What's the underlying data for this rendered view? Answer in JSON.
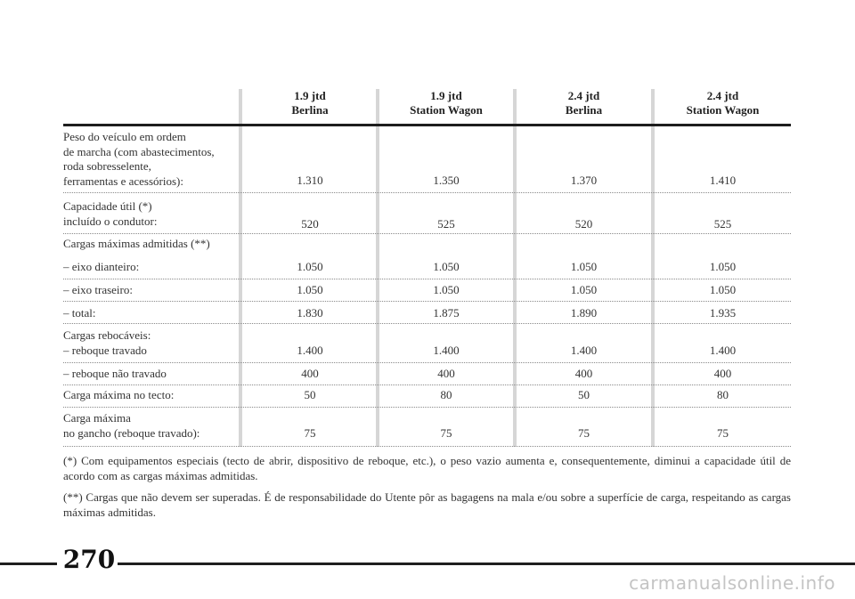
{
  "columns": [
    {
      "line1": "1.9 jtd",
      "line2": "Berlina"
    },
    {
      "line1": "1.9 jtd",
      "line2": "Station Wagon"
    },
    {
      "line1": "2.4 jtd",
      "line2": "Berlina"
    },
    {
      "line1": "2.4 jtd",
      "line2": "Station Wagon"
    }
  ],
  "rows": [
    {
      "label": "Peso do veículo em ordem\nde marcha (com abastecimentos,\nroda sobresselente,\nferramentas e acessórios):",
      "values": [
        "1.310",
        "1.350",
        "1.370",
        "1.410"
      ]
    },
    {
      "label": "Capacidade útil (*)\nincluído o condutor:",
      "values": [
        "520",
        "525",
        "520",
        "525"
      ]
    },
    {
      "label": "Cargas máximas admitidas (**)",
      "values": [
        "",
        "",
        "",
        ""
      ]
    },
    {
      "label": "– eixo dianteiro:",
      "values": [
        "1.050",
        "1.050",
        "1.050",
        "1.050"
      ]
    },
    {
      "label": "– eixo traseiro:",
      "values": [
        "1.050",
        "1.050",
        "1.050",
        "1.050"
      ]
    },
    {
      "label": "– total:",
      "values": [
        "1.830",
        "1.875",
        "1.890",
        "1.935"
      ]
    },
    {
      "label": "Cargas rebocáveis:\n– reboque travado",
      "values": [
        "1.400",
        "1.400",
        "1.400",
        "1.400"
      ]
    },
    {
      "label": "– reboque não travado",
      "values": [
        "400",
        "400",
        "400",
        "400"
      ]
    },
    {
      "label": "Carga máxima no tecto:",
      "values": [
        "50",
        "80",
        "50",
        "80"
      ]
    },
    {
      "label": "Carga máxima\nno gancho (reboque travado):",
      "values": [
        "75",
        "75",
        "75",
        "75"
      ]
    }
  ],
  "notes": [
    "(*) Com equipamentos especiais (tecto de abrir, dispositivo de reboque, etc.), o peso vazio aumenta e, consequentemente, diminui a capacidade útil de acordo com as cargas máximas admitidas.",
    "(**) Cargas que não devem ser superadas. É de responsabilidade do Utente pôr as bagagens na mala e/ou sobre a superfície de carga, respeitando as cargas máximas admitidas."
  ],
  "page_number": "270",
  "watermark": "carmanualsonline.info"
}
